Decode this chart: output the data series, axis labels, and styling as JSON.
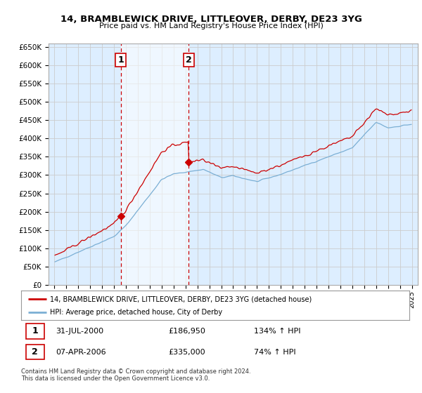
{
  "title": "14, BRAMBLEWICK DRIVE, LITTLEOVER, DERBY, DE23 3YG",
  "subtitle": "Price paid vs. HM Land Registry's House Price Index (HPI)",
  "ylim": [
    0,
    660000
  ],
  "yticks": [
    0,
    50000,
    100000,
    150000,
    200000,
    250000,
    300000,
    350000,
    400000,
    450000,
    500000,
    550000,
    600000,
    650000
  ],
  "ytick_labels": [
    "£0",
    "£50K",
    "£100K",
    "£150K",
    "£200K",
    "£250K",
    "£300K",
    "£350K",
    "£400K",
    "£450K",
    "£500K",
    "£550K",
    "£600K",
    "£650K"
  ],
  "sale1_year": 2000.58,
  "sale1_price": 186950,
  "sale1_label": "1",
  "sale2_year": 2006.27,
  "sale2_price": 335000,
  "sale2_label": "2",
  "line_color_property": "#cc0000",
  "line_color_hpi": "#7bafd4",
  "vline_color": "#cc0000",
  "grid_color": "#cccccc",
  "bg_color": "#ddeeff",
  "shade_color": "#ddeeff",
  "legend_label_property": "14, BRAMBLEWICK DRIVE, LITTLEOVER, DERBY, DE23 3YG (detached house)",
  "legend_label_hpi": "HPI: Average price, detached house, City of Derby",
  "footnote": "Contains HM Land Registry data © Crown copyright and database right 2024.\nThis data is licensed under the Open Government Licence v3.0.",
  "xlim_start": 1994.5,
  "xlim_end": 2025.5
}
